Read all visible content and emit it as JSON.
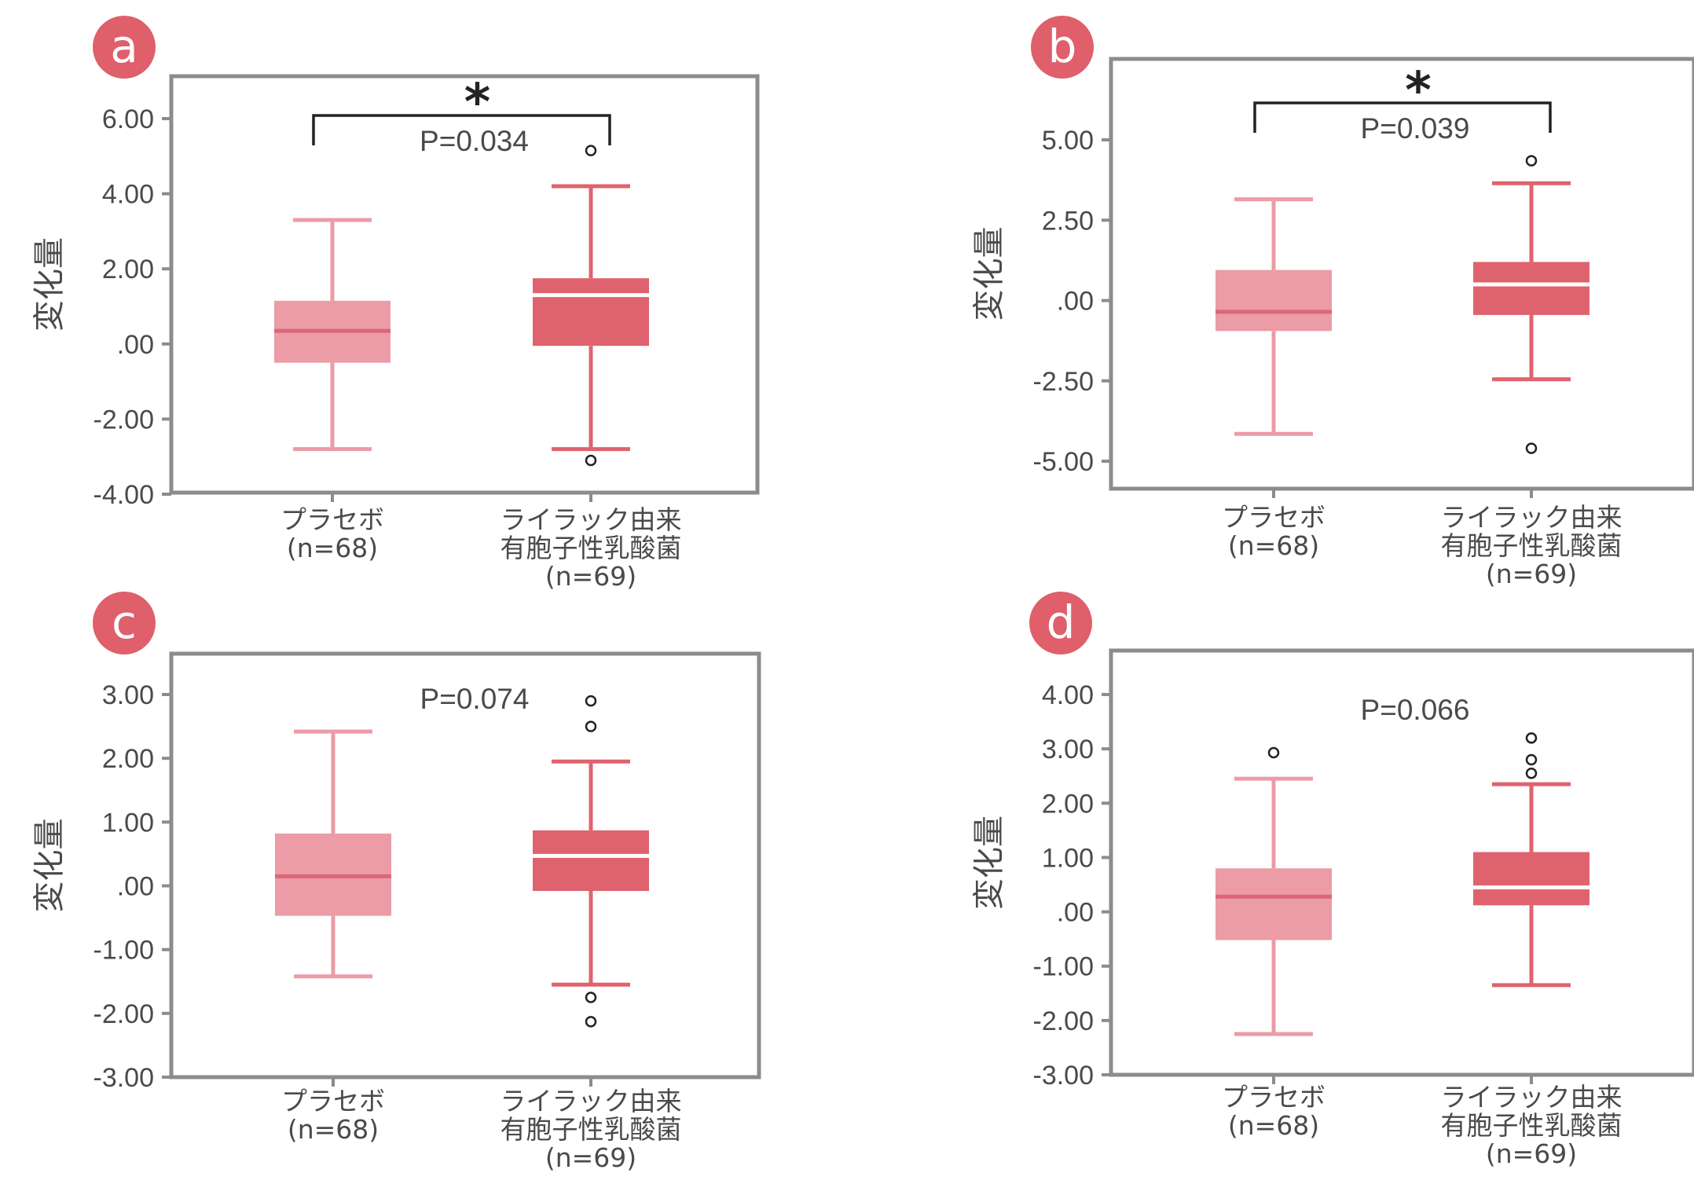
{
  "colors": {
    "placebo": "#eb9ca6",
    "placebo_median": "#dc6678",
    "treatment": "#df636e",
    "treatment_median": "#ffffff",
    "frame": "#8c8c8c",
    "badge": "#df5f6a",
    "text": "#4a4a4a"
  },
  "chart_data": [
    {
      "type": "box",
      "panel_label": "a",
      "ylabel": "変化量",
      "ylim": [
        -4.0,
        6.0
      ],
      "yticks": [
        {
          "value": 6.0,
          "label": "6.00"
        },
        {
          "value": 4.0,
          "label": "4.00"
        },
        {
          "value": 2.0,
          "label": "2.00"
        },
        {
          "value": 0.0,
          "label": ".00"
        },
        {
          "value": -2.0,
          "label": "-2.00"
        },
        {
          "value": -4.0,
          "label": "-4.00"
        }
      ],
      "p_value": "P=0.034",
      "significance": "*",
      "categories": [
        {
          "lines": [
            "プラセボ",
            "(n=68)"
          ]
        },
        {
          "lines": [
            "ライラック由来",
            "有胞子性乳酸菌",
            "(n=69)"
          ]
        }
      ],
      "series": [
        {
          "whisker_low": -2.8,
          "q1": -0.5,
          "median": 0.35,
          "q3": 1.15,
          "whisker_high": 3.3,
          "outliers": []
        },
        {
          "whisker_low": -2.8,
          "q1": -0.05,
          "median": 1.3,
          "q3": 1.75,
          "whisker_high": 4.2,
          "outliers": [
            5.15,
            -3.1
          ]
        }
      ]
    },
    {
      "type": "box",
      "panel_label": "b",
      "ylabel": "変化量",
      "ylim": [
        -6.0,
        7.5
      ],
      "yticks": [
        {
          "value": 5.0,
          "label": "5.00"
        },
        {
          "value": 2.5,
          "label": "2.50"
        },
        {
          "value": 0.0,
          "label": ".00"
        },
        {
          "value": -2.5,
          "label": "-2.50"
        },
        {
          "value": -5.0,
          "label": "-5.00"
        }
      ],
      "p_value": "P=0.039",
      "significance": "*",
      "categories": [
        {
          "lines": [
            "プラセボ",
            "(n=68)"
          ]
        },
        {
          "lines": [
            "ライラック由来",
            "有胞子性乳酸菌",
            "(n=69)"
          ]
        }
      ],
      "series": [
        {
          "whisker_low": -4.15,
          "q1": -0.95,
          "median": -0.35,
          "q3": 0.95,
          "whisker_high": 3.15,
          "outliers": []
        },
        {
          "whisker_low": -2.45,
          "q1": -0.45,
          "median": 0.5,
          "q3": 1.2,
          "whisker_high": 3.65,
          "outliers": [
            4.35,
            -4.6
          ]
        }
      ]
    },
    {
      "type": "box",
      "panel_label": "c",
      "ylabel": "変化量",
      "ylim": [
        -3.0,
        3.65
      ],
      "yticks": [
        {
          "value": 3.0,
          "label": "3.00"
        },
        {
          "value": 2.0,
          "label": "2.00"
        },
        {
          "value": 1.0,
          "label": "1.00"
        },
        {
          "value": 0.0,
          "label": ".00"
        },
        {
          "value": -1.0,
          "label": "-1.00"
        },
        {
          "value": -2.0,
          "label": "-2.00"
        },
        {
          "value": -3.0,
          "label": "-3.00"
        }
      ],
      "p_value": "P=0.074",
      "significance": "",
      "categories": [
        {
          "lines": [
            "プラセボ",
            "(n=68)"
          ]
        },
        {
          "lines": [
            "ライラック由来",
            "有胞子性乳酸菌",
            "(n=69)"
          ]
        }
      ],
      "series": [
        {
          "whisker_low": -1.42,
          "q1": -0.47,
          "median": 0.15,
          "q3": 0.82,
          "whisker_high": 2.42,
          "outliers": []
        },
        {
          "whisker_low": -1.55,
          "q1": -0.08,
          "median": 0.47,
          "q3": 0.87,
          "whisker_high": 1.95,
          "outliers": [
            2.9,
            2.5,
            -1.75,
            -2.13
          ]
        }
      ]
    },
    {
      "type": "box",
      "panel_label": "d",
      "ylabel": "変化量",
      "ylim": [
        -3.0,
        3.8
      ],
      "yticks": [
        {
          "value": 4.0,
          "label": "4.00"
        },
        {
          "value": 3.0,
          "label": "3.00"
        },
        {
          "value": 2.0,
          "label": "2.00"
        },
        {
          "value": 1.0,
          "label": "1.00"
        },
        {
          "value": 0.0,
          "label": ".00"
        },
        {
          "value": -1.0,
          "label": "-1.00"
        },
        {
          "value": -2.0,
          "label": "-2.00"
        },
        {
          "value": -3.0,
          "label": "-3.00"
        }
      ],
      "p_value": "P=0.066",
      "significance": "",
      "categories": [
        {
          "lines": [
            "プラセボ",
            "(n=68)"
          ]
        },
        {
          "lines": [
            "ライラック由来",
            "有胞子性乳酸菌",
            "(n=69)"
          ]
        }
      ],
      "series": [
        {
          "whisker_low": -2.25,
          "q1": -0.52,
          "median": 0.28,
          "q3": 0.8,
          "whisker_high": 2.45,
          "outliers": [
            2.93
          ]
        },
        {
          "whisker_low": -1.35,
          "q1": 0.12,
          "median": 0.45,
          "q3": 1.1,
          "whisker_high": 2.35,
          "outliers": [
            3.2,
            2.8,
            2.55
          ]
        }
      ]
    }
  ]
}
